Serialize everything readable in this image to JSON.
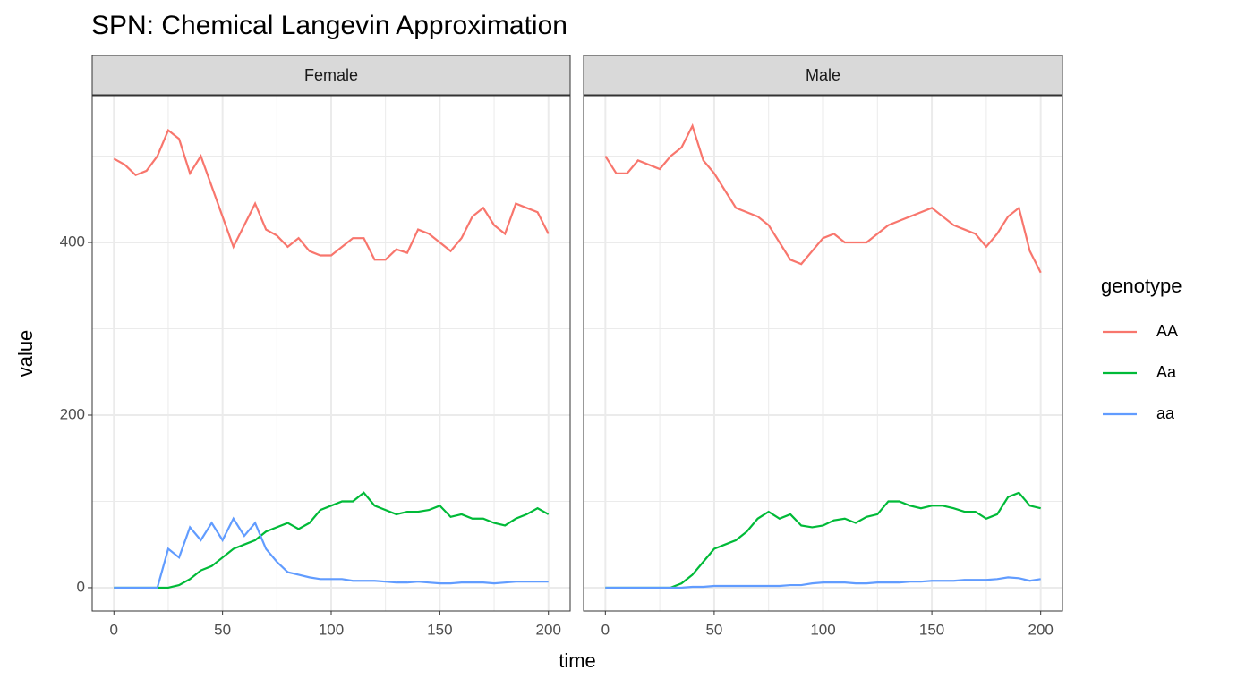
{
  "chart_data": {
    "type": "line",
    "title": "SPN: Chemical Langevin Approximation",
    "x_label": "time",
    "y_label": "value",
    "legend_title": "genotype",
    "xlim": [
      -10,
      210
    ],
    "ylim": [
      -27,
      570
    ],
    "xticks": [
      0,
      50,
      100,
      150,
      200
    ],
    "yticks": [
      0,
      200,
      400
    ],
    "x_minor_ticks": [
      25,
      75,
      125,
      175
    ],
    "y_minor_ticks": [
      100,
      300,
      500
    ],
    "grid": true,
    "x": [
      0,
      5,
      10,
      15,
      20,
      25,
      30,
      35,
      40,
      45,
      50,
      55,
      60,
      65,
      70,
      75,
      80,
      85,
      90,
      95,
      100,
      105,
      110,
      115,
      120,
      125,
      130,
      135,
      140,
      145,
      150,
      155,
      160,
      165,
      170,
      175,
      180,
      185,
      190,
      195,
      200
    ],
    "series": [
      {
        "name": "AA",
        "color": "#f8766d"
      },
      {
        "name": "Aa",
        "color": "#00ba38"
      },
      {
        "name": "aa",
        "color": "#619cff"
      }
    ],
    "facets": [
      {
        "label": "Female",
        "series": [
          {
            "values": [
              497,
              490,
              478,
              483,
              500,
              530,
              520,
              480,
              500,
              465,
              430,
              395,
              420,
              445,
              415,
              408,
              395,
              405,
              390,
              385,
              385,
              395,
              405,
              405,
              380,
              380,
              392,
              388,
              415,
              410,
              400,
              390,
              405,
              430,
              440,
              420,
              410,
              445,
              440,
              435,
              410
            ]
          },
          {
            "values": [
              0,
              0,
              0,
              0,
              0,
              0,
              3,
              10,
              20,
              25,
              35,
              45,
              50,
              55,
              65,
              70,
              75,
              68,
              75,
              90,
              95,
              100,
              100,
              110,
              95,
              90,
              85,
              88,
              88,
              90,
              95,
              82,
              85,
              80,
              80,
              75,
              72,
              80,
              85,
              92,
              85
            ]
          },
          {
            "values": [
              0,
              0,
              0,
              0,
              0,
              45,
              35,
              70,
              55,
              75,
              55,
              80,
              60,
              75,
              45,
              30,
              18,
              15,
              12,
              10,
              10,
              10,
              8,
              8,
              8,
              7,
              6,
              6,
              7,
              6,
              5,
              5,
              6,
              6,
              6,
              5,
              6,
              7,
              7,
              7,
              7
            ]
          }
        ]
      },
      {
        "label": "Male",
        "series": [
          {
            "values": [
              500,
              480,
              480,
              495,
              490,
              485,
              500,
              510,
              535,
              495,
              480,
              460,
              440,
              435,
              430,
              420,
              400,
              380,
              375,
              390,
              405,
              410,
              400,
              400,
              400,
              410,
              420,
              425,
              430,
              435,
              440,
              430,
              420,
              415,
              410,
              395,
              410,
              430,
              440,
              390,
              365
            ]
          },
          {
            "values": [
              0,
              0,
              0,
              0,
              0,
              0,
              0,
              5,
              15,
              30,
              45,
              50,
              55,
              65,
              80,
              88,
              80,
              85,
              72,
              70,
              72,
              78,
              80,
              75,
              82,
              85,
              100,
              100,
              95,
              92,
              95,
              95,
              92,
              88,
              88,
              80,
              85,
              105,
              110,
              95,
              92
            ]
          },
          {
            "values": [
              0,
              0,
              0,
              0,
              0,
              0,
              0,
              0,
              1,
              1,
              2,
              2,
              2,
              2,
              2,
              2,
              2,
              3,
              3,
              5,
              6,
              6,
              6,
              5,
              5,
              6,
              6,
              6,
              7,
              7,
              8,
              8,
              8,
              9,
              9,
              9,
              10,
              12,
              11,
              8,
              10
            ]
          }
        ]
      }
    ]
  }
}
